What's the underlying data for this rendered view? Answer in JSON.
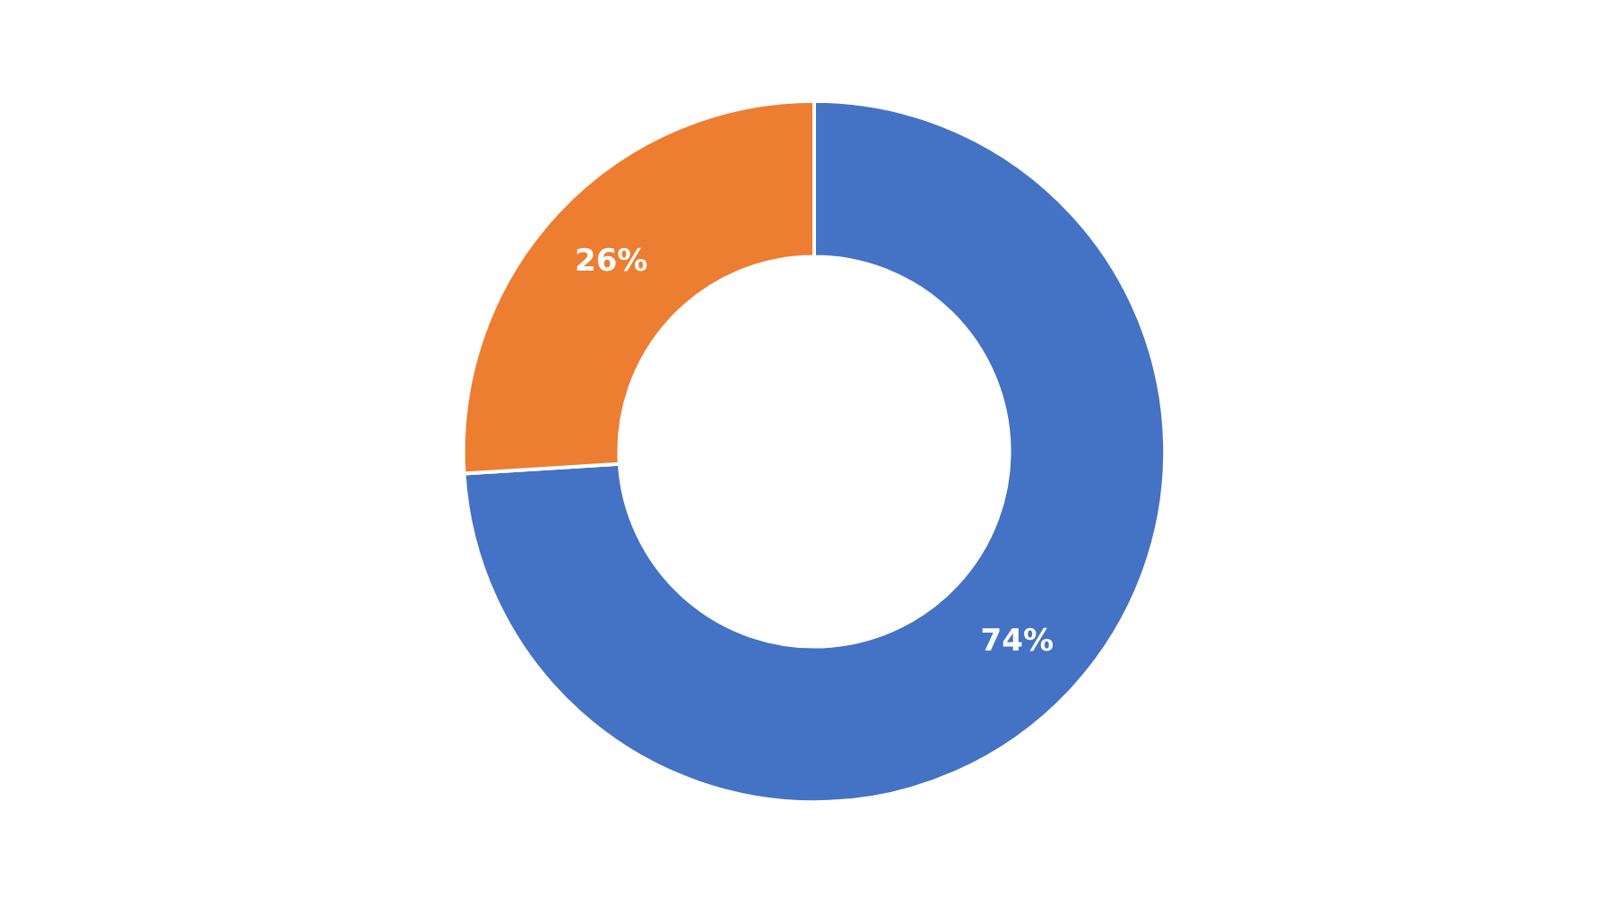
{
  "chart_data": {
    "type": "donut",
    "categories": [
      null,
      null
    ],
    "values": [
      74,
      26
    ],
    "colors": [
      "#4472c4",
      "#ed7d31"
    ],
    "value_labels": [
      "74%",
      "26%"
    ]
  }
}
